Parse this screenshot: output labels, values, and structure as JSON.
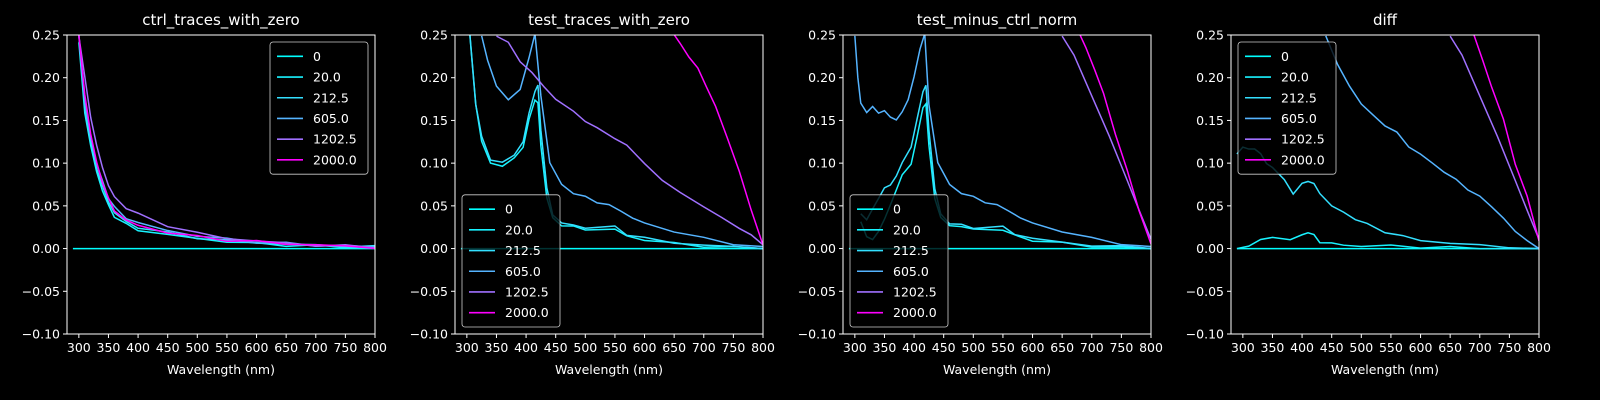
{
  "chart_data": [
    {
      "type": "line",
      "title": "ctrl_traces_with_zero",
      "xlabel": "Wavelength (nm)",
      "ylabel": "",
      "xlim": [
        280,
        800
      ],
      "ylim": [
        -0.1,
        0.25
      ],
      "xticks": [
        "300",
        "350",
        "400",
        "450",
        "500",
        "550",
        "600",
        "650",
        "700",
        "750",
        "800"
      ],
      "yticks": [
        "−0.10",
        "−0.05",
        "0.00",
        "0.05",
        "0.10",
        "0.15",
        "0.20",
        "0.25"
      ],
      "legend_position": "upper-right",
      "series": [
        {
          "name": "0",
          "color": "#00ffff",
          "x": [
            290,
            300,
            320,
            340,
            360,
            380,
            400,
            450,
            500,
            550,
            600,
            650,
            700,
            750,
            800
          ],
          "y": [
            0,
            0,
            0,
            0,
            0,
            0,
            0,
            0,
            0,
            0,
            0,
            0,
            0,
            0,
            0
          ]
        },
        {
          "name": "20.0",
          "color": "#18f3ff",
          "x": [
            300,
            310,
            320,
            330,
            340,
            350,
            360,
            380,
            400,
            450,
            500,
            550,
            600,
            650,
            700,
            750,
            800
          ],
          "y": [
            0.24,
            0.16,
            0.12,
            0.09,
            0.068,
            0.05,
            0.038,
            0.028,
            0.022,
            0.016,
            0.012,
            0.008,
            0.006,
            0.004,
            0.003,
            0.002,
            0.002
          ]
        },
        {
          "name": "212.5",
          "color": "#33e0ff",
          "x": [
            300,
            310,
            320,
            330,
            340,
            350,
            360,
            380,
            400,
            450,
            500,
            550,
            600,
            650,
            700,
            750,
            800
          ],
          "y": [
            0.25,
            0.165,
            0.125,
            0.095,
            0.072,
            0.055,
            0.042,
            0.031,
            0.025,
            0.018,
            0.013,
            0.009,
            0.007,
            0.005,
            0.004,
            0.003,
            0.002
          ]
        },
        {
          "name": "605.0",
          "color": "#55b4ff",
          "x": [
            300,
            310,
            320,
            330,
            340,
            350,
            360,
            380,
            400,
            450,
            500,
            550,
            600,
            650,
            700,
            750,
            800
          ],
          "y": [
            0.25,
            0.17,
            0.13,
            0.1,
            0.078,
            0.06,
            0.048,
            0.036,
            0.03,
            0.021,
            0.015,
            0.011,
            0.008,
            0.006,
            0.004,
            0.003,
            0.002
          ]
        },
        {
          "name": "1202.5",
          "color": "#a070ff",
          "x": [
            300,
            310,
            320,
            330,
            340,
            350,
            360,
            380,
            400,
            450,
            500,
            550,
            600,
            650,
            700,
            750,
            800
          ],
          "y": [
            0.25,
            0.2,
            0.155,
            0.12,
            0.095,
            0.074,
            0.06,
            0.048,
            0.04,
            0.027,
            0.018,
            0.012,
            0.009,
            0.006,
            0.004,
            0.003,
            0.002
          ]
        },
        {
          "name": "2000.0",
          "color": "#ff00ff",
          "x": [
            300,
            310,
            320,
            330,
            340,
            350,
            360,
            380,
            400,
            450,
            500,
            550,
            600,
            650,
            700,
            750,
            800
          ],
          "y": [
            0.25,
            0.18,
            0.135,
            0.1,
            0.078,
            0.058,
            0.045,
            0.033,
            0.027,
            0.019,
            0.014,
            0.01,
            0.008,
            0.006,
            0.004,
            0.003,
            0.001
          ]
        }
      ]
    },
    {
      "type": "line",
      "title": "test_traces_with_zero",
      "xlabel": "Wavelength (nm)",
      "ylabel": "",
      "xlim": [
        280,
        800
      ],
      "ylim": [
        -0.1,
        0.25
      ],
      "xticks": [
        "300",
        "350",
        "400",
        "450",
        "500",
        "550",
        "600",
        "650",
        "700",
        "750",
        "800"
      ],
      "yticks": [
        "−0.10",
        "−0.05",
        "0.00",
        "0.05",
        "0.10",
        "0.15",
        "0.20",
        "0.25"
      ],
      "legend_position": "lower-left",
      "series": [
        {
          "name": "0",
          "color": "#00ffff",
          "x": [
            290,
            300,
            320,
            340,
            360,
            380,
            400,
            450,
            500,
            550,
            600,
            650,
            700,
            750,
            800
          ],
          "y": [
            0,
            0,
            0,
            0,
            0,
            0,
            0,
            0,
            0,
            0,
            0,
            0,
            0,
            0,
            0
          ]
        },
        {
          "name": "20.0",
          "color": "#18f3ff",
          "x": [
            305,
            315,
            325,
            340,
            360,
            380,
            395,
            405,
            415,
            420,
            425,
            435,
            445,
            460,
            480,
            500,
            550,
            570,
            600,
            650,
            700,
            750,
            800
          ],
          "y": [
            0.25,
            0.17,
            0.125,
            0.1,
            0.097,
            0.105,
            0.12,
            0.15,
            0.175,
            0.17,
            0.12,
            0.06,
            0.035,
            0.028,
            0.025,
            0.023,
            0.022,
            0.015,
            0.01,
            0.006,
            0.003,
            0.001,
            0
          ]
        },
        {
          "name": "212.5",
          "color": "#33e0ff",
          "x": [
            305,
            315,
            325,
            340,
            360,
            380,
            395,
            405,
            415,
            420,
            425,
            435,
            445,
            460,
            480,
            500,
            550,
            570,
            600,
            650,
            700,
            750,
            800
          ],
          "y": [
            0.25,
            0.17,
            0.13,
            0.105,
            0.1,
            0.11,
            0.125,
            0.158,
            0.185,
            0.19,
            0.14,
            0.07,
            0.04,
            0.03,
            0.027,
            0.025,
            0.025,
            0.017,
            0.012,
            0.007,
            0.004,
            0.002,
            0
          ]
        },
        {
          "name": "605.0",
          "color": "#55b4ff",
          "x": [
            325,
            335,
            350,
            370,
            390,
            405,
            415,
            425,
            440,
            460,
            480,
            500,
            520,
            540,
            560,
            580,
            600,
            650,
            700,
            750,
            800
          ],
          "y": [
            0.25,
            0.22,
            0.19,
            0.175,
            0.185,
            0.225,
            0.25,
            0.18,
            0.1,
            0.075,
            0.065,
            0.06,
            0.055,
            0.05,
            0.045,
            0.035,
            0.03,
            0.02,
            0.012,
            0.006,
            0.001
          ]
        },
        {
          "name": "1202.5",
          "color": "#a070ff",
          "x": [
            350,
            370,
            390,
            410,
            430,
            450,
            480,
            500,
            520,
            550,
            570,
            600,
            630,
            660,
            700,
            730,
            760,
            780,
            800
          ],
          "y": [
            0.25,
            0.24,
            0.22,
            0.205,
            0.19,
            0.175,
            0.16,
            0.15,
            0.14,
            0.13,
            0.12,
            0.1,
            0.08,
            0.065,
            0.05,
            0.035,
            0.025,
            0.015,
            0.005
          ]
        },
        {
          "name": "2000.0",
          "color": "#ff00ff",
          "x": [
            650,
            660,
            675,
            690,
            705,
            720,
            740,
            760,
            780,
            800
          ],
          "y": [
            0.25,
            0.24,
            0.225,
            0.21,
            0.19,
            0.165,
            0.13,
            0.09,
            0.045,
            0.005
          ]
        }
      ]
    },
    {
      "type": "line",
      "title": "test_minus_ctrl_norm",
      "xlabel": "Wavelength (nm)",
      "ylabel": "",
      "xlim": [
        280,
        800
      ],
      "ylim": [
        -0.1,
        0.25
      ],
      "xticks": [
        "300",
        "350",
        "400",
        "450",
        "500",
        "550",
        "600",
        "650",
        "700",
        "750",
        "800"
      ],
      "yticks": [
        "−0.10",
        "−0.05",
        "0.00",
        "0.05",
        "0.10",
        "0.15",
        "0.20",
        "0.25"
      ],
      "legend_position": "lower-left",
      "series": [
        {
          "name": "0",
          "color": "#00ffff",
          "x": [
            290,
            300,
            320,
            340,
            360,
            380,
            400,
            450,
            500,
            550,
            600,
            650,
            700,
            750,
            800
          ],
          "y": [
            0,
            0,
            0,
            0,
            0,
            0,
            0,
            0,
            0,
            0,
            0,
            0,
            0,
            0,
            0
          ]
        },
        {
          "name": "20.0",
          "color": "#18f3ff",
          "x": [
            310,
            320,
            330,
            340,
            350,
            360,
            370,
            380,
            395,
            405,
            415,
            420,
            425,
            435,
            445,
            460,
            480,
            500,
            550,
            570,
            600,
            650,
            700,
            750,
            800
          ],
          "y": [
            0.03,
            0.015,
            0.01,
            0.02,
            0.035,
            0.05,
            0.07,
            0.085,
            0.1,
            0.13,
            0.165,
            0.17,
            0.12,
            0.06,
            0.035,
            0.028,
            0.025,
            0.023,
            0.022,
            0.015,
            0.01,
            0.006,
            0.003,
            0.001,
            0
          ]
        },
        {
          "name": "212.5",
          "color": "#33e0ff",
          "x": [
            310,
            320,
            330,
            340,
            350,
            360,
            370,
            380,
            395,
            405,
            415,
            420,
            425,
            435,
            445,
            460,
            480,
            500,
            550,
            570,
            600,
            650,
            700,
            750,
            800
          ],
          "y": [
            0.04,
            0.035,
            0.045,
            0.06,
            0.07,
            0.075,
            0.085,
            0.1,
            0.12,
            0.15,
            0.185,
            0.19,
            0.14,
            0.07,
            0.04,
            0.03,
            0.027,
            0.025,
            0.025,
            0.017,
            0.012,
            0.007,
            0.004,
            0.002,
            0
          ]
        },
        {
          "name": "605.0",
          "color": "#55b4ff",
          "x": [
            300,
            305,
            310,
            320,
            330,
            340,
            350,
            360,
            370,
            380,
            390,
            400,
            410,
            418,
            425,
            440,
            460,
            480,
            500,
            520,
            540,
            560,
            580,
            600,
            650,
            700,
            750,
            800
          ],
          "y": [
            0.25,
            0.2,
            0.17,
            0.16,
            0.165,
            0.16,
            0.16,
            0.155,
            0.15,
            0.16,
            0.175,
            0.2,
            0.235,
            0.25,
            0.17,
            0.1,
            0.075,
            0.065,
            0.06,
            0.055,
            0.05,
            0.045,
            0.035,
            0.03,
            0.02,
            0.012,
            0.006,
            0.001
          ]
        },
        {
          "name": "1202.5",
          "color": "#a070ff",
          "x": [
            650,
            670,
            700,
            730,
            760,
            780,
            800
          ],
          "y": [
            0.25,
            0.225,
            0.18,
            0.13,
            0.08,
            0.045,
            0.01
          ]
        },
        {
          "name": "2000.0",
          "color": "#ff00ff",
          "x": [
            680,
            690,
            705,
            720,
            740,
            760,
            780,
            800
          ],
          "y": [
            0.25,
            0.235,
            0.21,
            0.18,
            0.135,
            0.09,
            0.045,
            0.005
          ]
        }
      ]
    },
    {
      "type": "line",
      "title": "diff",
      "xlabel": "Wavelength (nm)",
      "ylabel": "",
      "xlim": [
        280,
        800
      ],
      "ylim": [
        -0.1,
        0.25
      ],
      "xticks": [
        "300",
        "350",
        "400",
        "450",
        "500",
        "550",
        "600",
        "650",
        "700",
        "750",
        "800"
      ],
      "yticks": [
        "−0.10",
        "−0.05",
        "0.00",
        "0.05",
        "0.10",
        "0.15",
        "0.20",
        "0.25"
      ],
      "legend_position": "upper-left",
      "series": [
        {
          "name": "0",
          "color": "#00ffff",
          "x": [
            290,
            300,
            350,
            400,
            450,
            500,
            550,
            600,
            650,
            700,
            750,
            800
          ],
          "y": [
            0,
            0,
            0,
            0,
            0,
            0,
            0,
            0,
            0,
            0,
            0,
            0
          ]
        },
        {
          "name": "20.0",
          "color": "#18f3ff",
          "x": [
            290,
            310,
            330,
            350,
            380,
            400,
            410,
            420,
            430,
            450,
            470,
            500,
            550,
            600,
            650,
            700,
            750,
            800
          ],
          "y": [
            0,
            0.004,
            0.01,
            0.013,
            0.011,
            0.015,
            0.02,
            0.015,
            0.008,
            0.006,
            0.004,
            0.003,
            0.003,
            0.002,
            0.001,
            0.001,
            0,
            0
          ]
        },
        {
          "name": "212.5",
          "color": "#33e0ff",
          "x": [
            290,
            300,
            310,
            320,
            330,
            340,
            350,
            370,
            385,
            400,
            410,
            420,
            430,
            450,
            470,
            490,
            510,
            540,
            570,
            600,
            650,
            700,
            750,
            800
          ],
          "y": [
            0.11,
            0.12,
            0.115,
            0.118,
            0.11,
            0.1,
            0.095,
            0.08,
            0.065,
            0.075,
            0.08,
            0.075,
            0.065,
            0.05,
            0.042,
            0.035,
            0.028,
            0.02,
            0.014,
            0.01,
            0.006,
            0.004,
            0.002,
            0
          ]
        },
        {
          "name": "605.0",
          "color": "#55b4ff",
          "x": [
            440,
            460,
            480,
            500,
            520,
            540,
            560,
            580,
            600,
            620,
            640,
            660,
            680,
            700,
            720,
            740,
            760,
            780,
            800
          ],
          "y": [
            0.25,
            0.215,
            0.19,
            0.17,
            0.155,
            0.145,
            0.135,
            0.12,
            0.11,
            0.1,
            0.09,
            0.08,
            0.07,
            0.06,
            0.05,
            0.035,
            0.02,
            0.01,
            0
          ]
        },
        {
          "name": "1202.5",
          "color": "#a070ff",
          "x": [
            650,
            670,
            700,
            730,
            760,
            780,
            800
          ],
          "y": [
            0.25,
            0.225,
            0.18,
            0.13,
            0.08,
            0.045,
            0.01
          ]
        },
        {
          "name": "2000.0",
          "color": "#ff00ff",
          "x": [
            690,
            705,
            720,
            740,
            760,
            780,
            800
          ],
          "y": [
            0.25,
            0.22,
            0.19,
            0.15,
            0.1,
            0.06,
            0.01
          ]
        }
      ]
    }
  ]
}
